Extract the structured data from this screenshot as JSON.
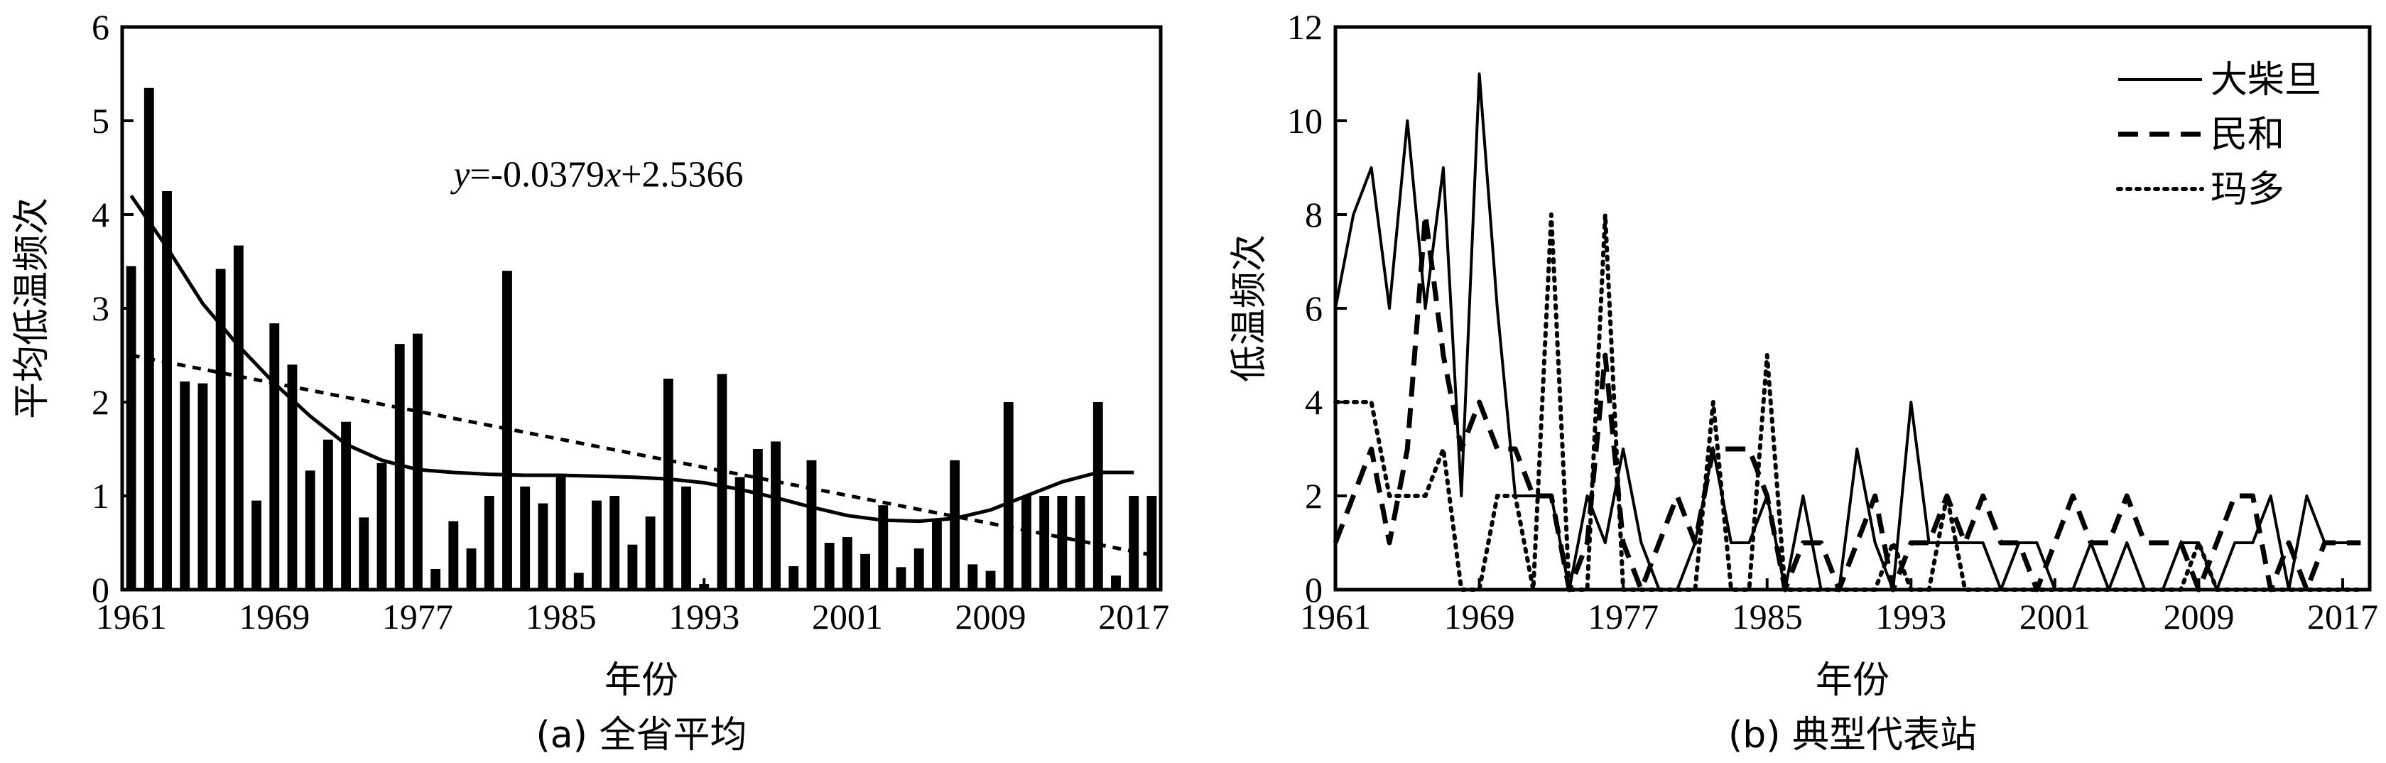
{
  "chart_data": [
    {
      "type": "bar",
      "caption": "(a) 全省平均",
      "xlabel": "年份",
      "ylabel": "平均低温频次",
      "annotation": "y=-0.0379x+2.5366",
      "xlim": [
        1960.5,
        2018.5
      ],
      "ylim": [
        0,
        6
      ],
      "xticks": [
        1961,
        1969,
        1977,
        1985,
        1993,
        2001,
        2009,
        2017
      ],
      "yticks": [
        0,
        1,
        2,
        3,
        4,
        5,
        6
      ],
      "x": [
        1961,
        1962,
        1963,
        1964,
        1965,
        1966,
        1967,
        1968,
        1969,
        1970,
        1971,
        1972,
        1973,
        1974,
        1975,
        1976,
        1977,
        1978,
        1979,
        1980,
        1981,
        1982,
        1983,
        1984,
        1985,
        1986,
        1987,
        1988,
        1989,
        1990,
        1991,
        1992,
        1993,
        1994,
        1995,
        1996,
        1997,
        1998,
        1999,
        2000,
        2001,
        2002,
        2003,
        2004,
        2005,
        2006,
        2007,
        2008,
        2009,
        2010,
        2011,
        2012,
        2013,
        2014,
        2015,
        2016,
        2017,
        2018
      ],
      "values": [
        3.45,
        5.35,
        4.25,
        2.22,
        2.2,
        3.42,
        3.67,
        0.95,
        2.84,
        2.4,
        1.27,
        1.6,
        1.79,
        0.77,
        1.35,
        2.62,
        2.73,
        0.22,
        0.73,
        0.44,
        1.0,
        3.4,
        1.1,
        0.92,
        1.2,
        0.18,
        0.95,
        1.0,
        0.48,
        0.78,
        2.25,
        1.1,
        0.06,
        2.3,
        1.2,
        1.5,
        1.58,
        0.25,
        1.38,
        0.5,
        0.56,
        0.38,
        0.9,
        0.24,
        0.44,
        0.75,
        1.38,
        0.27,
        0.2,
        2.0,
        1.0,
        1.0,
        1.0,
        1.0,
        2.0,
        0.15,
        1.0,
        1.0
      ],
      "series": [
        {
          "name": "",
          "style": "solid",
          "kind": "smooth",
          "x": [
            1961,
            1963,
            1965,
            1967,
            1969,
            1971,
            1973,
            1975,
            1977,
            1979,
            1981,
            1983,
            1985,
            1987,
            1989,
            1991,
            1993,
            1995,
            1997,
            1999,
            2001,
            2003,
            2005,
            2007,
            2009,
            2011,
            2013,
            2015,
            2017
          ],
          "y": [
            4.2,
            3.65,
            3.05,
            2.6,
            2.2,
            1.85,
            1.55,
            1.38,
            1.28,
            1.25,
            1.23,
            1.22,
            1.22,
            1.21,
            1.2,
            1.18,
            1.14,
            1.07,
            0.98,
            0.88,
            0.79,
            0.74,
            0.73,
            0.76,
            0.85,
            1.0,
            1.15,
            1.25,
            1.25
          ]
        },
        {
          "name": "",
          "style": "dashed",
          "kind": "trend",
          "x": [
            1961,
            2018
          ],
          "y": [
            2.5,
            0.37
          ]
        }
      ]
    },
    {
      "type": "line",
      "caption": "(b) 典型代表站",
      "xlabel": "年份",
      "ylabel": "低温频次",
      "xlim": [
        1961,
        2018.5
      ],
      "ylim": [
        0,
        12
      ],
      "xticks": [
        1961,
        1969,
        1977,
        1985,
        1993,
        2001,
        2009,
        2017
      ],
      "yticks": [
        0,
        2,
        4,
        6,
        8,
        10,
        12
      ],
      "legend_position": "top-right",
      "series": [
        {
          "name": "大柴旦",
          "style": "solid",
          "x": [
            1961,
            1962,
            1963,
            1964,
            1965,
            1966,
            1967,
            1968,
            1969,
            1970,
            1971,
            1972,
            1973,
            1974,
            1975,
            1976,
            1977,
            1978,
            1979,
            1980,
            1981,
            1982,
            1983,
            1984,
            1985,
            1986,
            1987,
            1988,
            1989,
            1990,
            1991,
            1992,
            1993,
            1994,
            1995,
            1996,
            1997,
            1998,
            1999,
            2000,
            2001,
            2002,
            2003,
            2004,
            2005,
            2006,
            2007,
            2008,
            2009,
            2010,
            2011,
            2012,
            2013,
            2014,
            2015,
            2016,
            2017,
            2018
          ],
          "y": [
            6,
            8,
            9,
            6,
            10,
            6,
            9,
            2,
            11,
            6,
            2,
            2,
            2,
            0,
            2,
            1,
            3,
            1,
            0,
            0,
            1,
            3,
            1,
            1,
            2,
            0,
            2,
            0,
            0,
            3,
            1,
            0,
            4,
            1,
            1,
            1,
            1,
            0,
            1,
            1,
            0,
            0,
            1,
            0,
            1,
            0,
            0,
            1,
            1,
            0,
            1,
            1,
            2,
            0,
            2,
            1,
            1,
            1
          ]
        },
        {
          "name": "民和",
          "style": "dashed",
          "x": [
            1961,
            1962,
            1963,
            1964,
            1965,
            1966,
            1967,
            1968,
            1969,
            1970,
            1971,
            1972,
            1973,
            1974,
            1975,
            1976,
            1977,
            1978,
            1979,
            1980,
            1981,
            1982,
            1983,
            1984,
            1985,
            1986,
            1987,
            1988,
            1989,
            1990,
            1991,
            1992,
            1993,
            1994,
            1995,
            1996,
            1997,
            1998,
            1999,
            2000,
            2001,
            2002,
            2003,
            2004,
            2005,
            2006,
            2007,
            2008,
            2009,
            2010,
            2011,
            2012,
            2013,
            2014,
            2015,
            2016,
            2017,
            2018
          ],
          "y": [
            1,
            2,
            3,
            1,
            3,
            8,
            5,
            3,
            4,
            3,
            3,
            2,
            2,
            0,
            1,
            5,
            1,
            0,
            1,
            2,
            1,
            3,
            3,
            3,
            2,
            0,
            1,
            1,
            0,
            1,
            2,
            0,
            1,
            1,
            2,
            1,
            2,
            1,
            1,
            0,
            1,
            2,
            1,
            1,
            2,
            1,
            1,
            1,
            0,
            1,
            2,
            2,
            0,
            1,
            0,
            1,
            1,
            1
          ]
        },
        {
          "name": "玛多",
          "style": "dotted",
          "x": [
            1961,
            1962,
            1963,
            1964,
            1965,
            1966,
            1967,
            1968,
            1969,
            1970,
            1971,
            1972,
            1973,
            1974,
            1975,
            1976,
            1977,
            1978,
            1979,
            1980,
            1981,
            1982,
            1983,
            1984,
            1985,
            1986,
            1987,
            1988,
            1989,
            1990,
            1991,
            1992,
            1993,
            1994,
            1995,
            1996,
            1997,
            1998,
            1999,
            2000,
            2001,
            2002,
            2003,
            2004,
            2005,
            2006,
            2007,
            2008,
            2009,
            2010,
            2011,
            2012,
            2013,
            2014,
            2015,
            2016,
            2017,
            2018
          ],
          "y": [
            4,
            4,
            4,
            2,
            2,
            2,
            3,
            0,
            0,
            2,
            2,
            0,
            8,
            0,
            0,
            8,
            0,
            0,
            0,
            0,
            0,
            4,
            0,
            0,
            5,
            0,
            0,
            0,
            0,
            0,
            0,
            1,
            0,
            0,
            2,
            0,
            0,
            0,
            0,
            0,
            0,
            0,
            0,
            0,
            0,
            0,
            0,
            0,
            1,
            0,
            0,
            0,
            0,
            0,
            0,
            0,
            0,
            0
          ]
        }
      ]
    }
  ]
}
